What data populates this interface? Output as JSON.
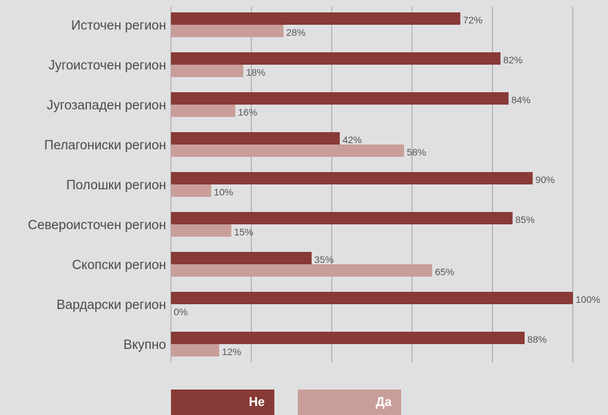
{
  "chart_data": {
    "type": "bar",
    "orientation": "horizontal",
    "categories": [
      "Источен регион",
      "Југоисточен регион",
      "Југозападен регион",
      "Пелагониски регион",
      "Полошки регион",
      "Североисточен регион",
      "Скопски регион",
      "Вардарски регион",
      "Вкупно"
    ],
    "series": [
      {
        "name": "Не",
        "color": "#883a36",
        "values": [
          72,
          82,
          84,
          42,
          90,
          85,
          35,
          100,
          88
        ]
      },
      {
        "name": "Да",
        "color": "#c99e9a",
        "values": [
          28,
          18,
          16,
          58,
          10,
          15,
          65,
          0,
          12
        ]
      }
    ],
    "value_suffix": "%",
    "xlim": [
      0,
      100
    ],
    "grid": true,
    "legend_position": "bottom"
  },
  "legend": {
    "no_label": "Не",
    "yes_label": "Да"
  }
}
